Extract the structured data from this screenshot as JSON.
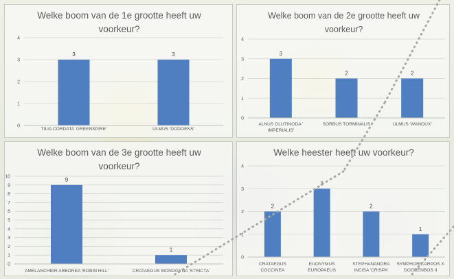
{
  "chart_data": [
    {
      "type": "bar",
      "title": "Welke boom van de 1e grootte heeft uw voorkeur?",
      "title_lines": [
        "Welke boom van de 1e grootte heeft uw",
        "voorkeur?"
      ],
      "categories": [
        "TILIA CORDATA 'GREENSPIRE'",
        "ULMUS 'DODOENS'"
      ],
      "category_lines": [
        [
          "TILIA CORDATA 'GREENSPIRE'"
        ],
        [
          "ULMUS 'DODOENS'"
        ]
      ],
      "values": [
        3,
        3
      ],
      "ylim": [
        0,
        4
      ],
      "yticks": [
        "0",
        "1",
        "2",
        "3",
        "4"
      ],
      "grid": true,
      "bar_color": "#4f7fc0"
    },
    {
      "type": "bar",
      "title": "Welke boom van de 2e grootte heeft uw voorkeur?",
      "title_lines": [
        "Welke boom van de 2e grootte heeft uw",
        "voorkeur?"
      ],
      "categories": [
        "ALNUS GLUTINODA ' IMPERIALIS'",
        "SORBUS TORMINALIS",
        "ULMUS 'WANOUX'"
      ],
      "category_lines": [
        [
          "ALNUS GLUTINODA '",
          "IMPERIALIS'"
        ],
        [
          "SORBUS TORMINALIS"
        ],
        [
          "ULMUS 'WANOUX'"
        ]
      ],
      "values": [
        3,
        2,
        2
      ],
      "ylim": [
        0,
        4
      ],
      "yticks": [
        "0",
        "1",
        "2",
        "3",
        "4"
      ],
      "grid": true,
      "bar_color": "#4f7fc0"
    },
    {
      "type": "bar",
      "title": "Welke boom van de 3e grootte heeft uw voorkeur?",
      "title_lines": [
        "Welke boom van de 3e grootte heeft uw",
        "voorkeur?"
      ],
      "categories": [
        "AMELANCHIER ARBOREA 'ROBIN HILL'",
        "CRATAEGUS MONOGYNA 'STRICTA'"
      ],
      "category_lines": [
        [
          "AMELANCHIER ARBOREA 'ROBIN HILL'"
        ],
        [
          "CRATAEGUS MONOGYNA 'STRICTA'"
        ]
      ],
      "values": [
        9,
        1
      ],
      "ylim": [
        0,
        10
      ],
      "yticks": [
        "0",
        "1",
        "2",
        "3",
        "4",
        "5",
        "6",
        "7",
        "8",
        "9",
        "10"
      ],
      "grid": true,
      "bar_color": "#4f7fc0"
    },
    {
      "type": "bar",
      "title": "Welke heester heeft uw voorkeur?",
      "title_lines": [
        "Welke heester heeft uw voorkeur?"
      ],
      "categories": [
        "CRATAEGUS COCCINEA",
        "EUONYMUS EUROPAEUS",
        "STEPHANANDRA INCISA 'CRISPA'",
        "SYMPHORICARPOS X DOORENBOS II"
      ],
      "category_lines": [
        [
          "CRATAEGUS",
          "COCCINEA"
        ],
        [
          "EUONYMUS",
          "EUROPAEUS"
        ],
        [
          "STEPHANANDRA",
          "INCISA 'CRISPA'"
        ],
        [
          "SYMPHORICARPOS X",
          "DOORENBOS II"
        ]
      ],
      "values": [
        2,
        3,
        2,
        1
      ],
      "ylim": [
        0,
        4
      ],
      "yticks": [
        "0",
        "1",
        "2",
        "3",
        "4"
      ],
      "grid": true,
      "bar_color": "#4f7fc0"
    }
  ],
  "colors": {
    "bar": "#4f7fc0",
    "grid": "#d3d5d0",
    "text": "#595959",
    "title": "#595959"
  }
}
